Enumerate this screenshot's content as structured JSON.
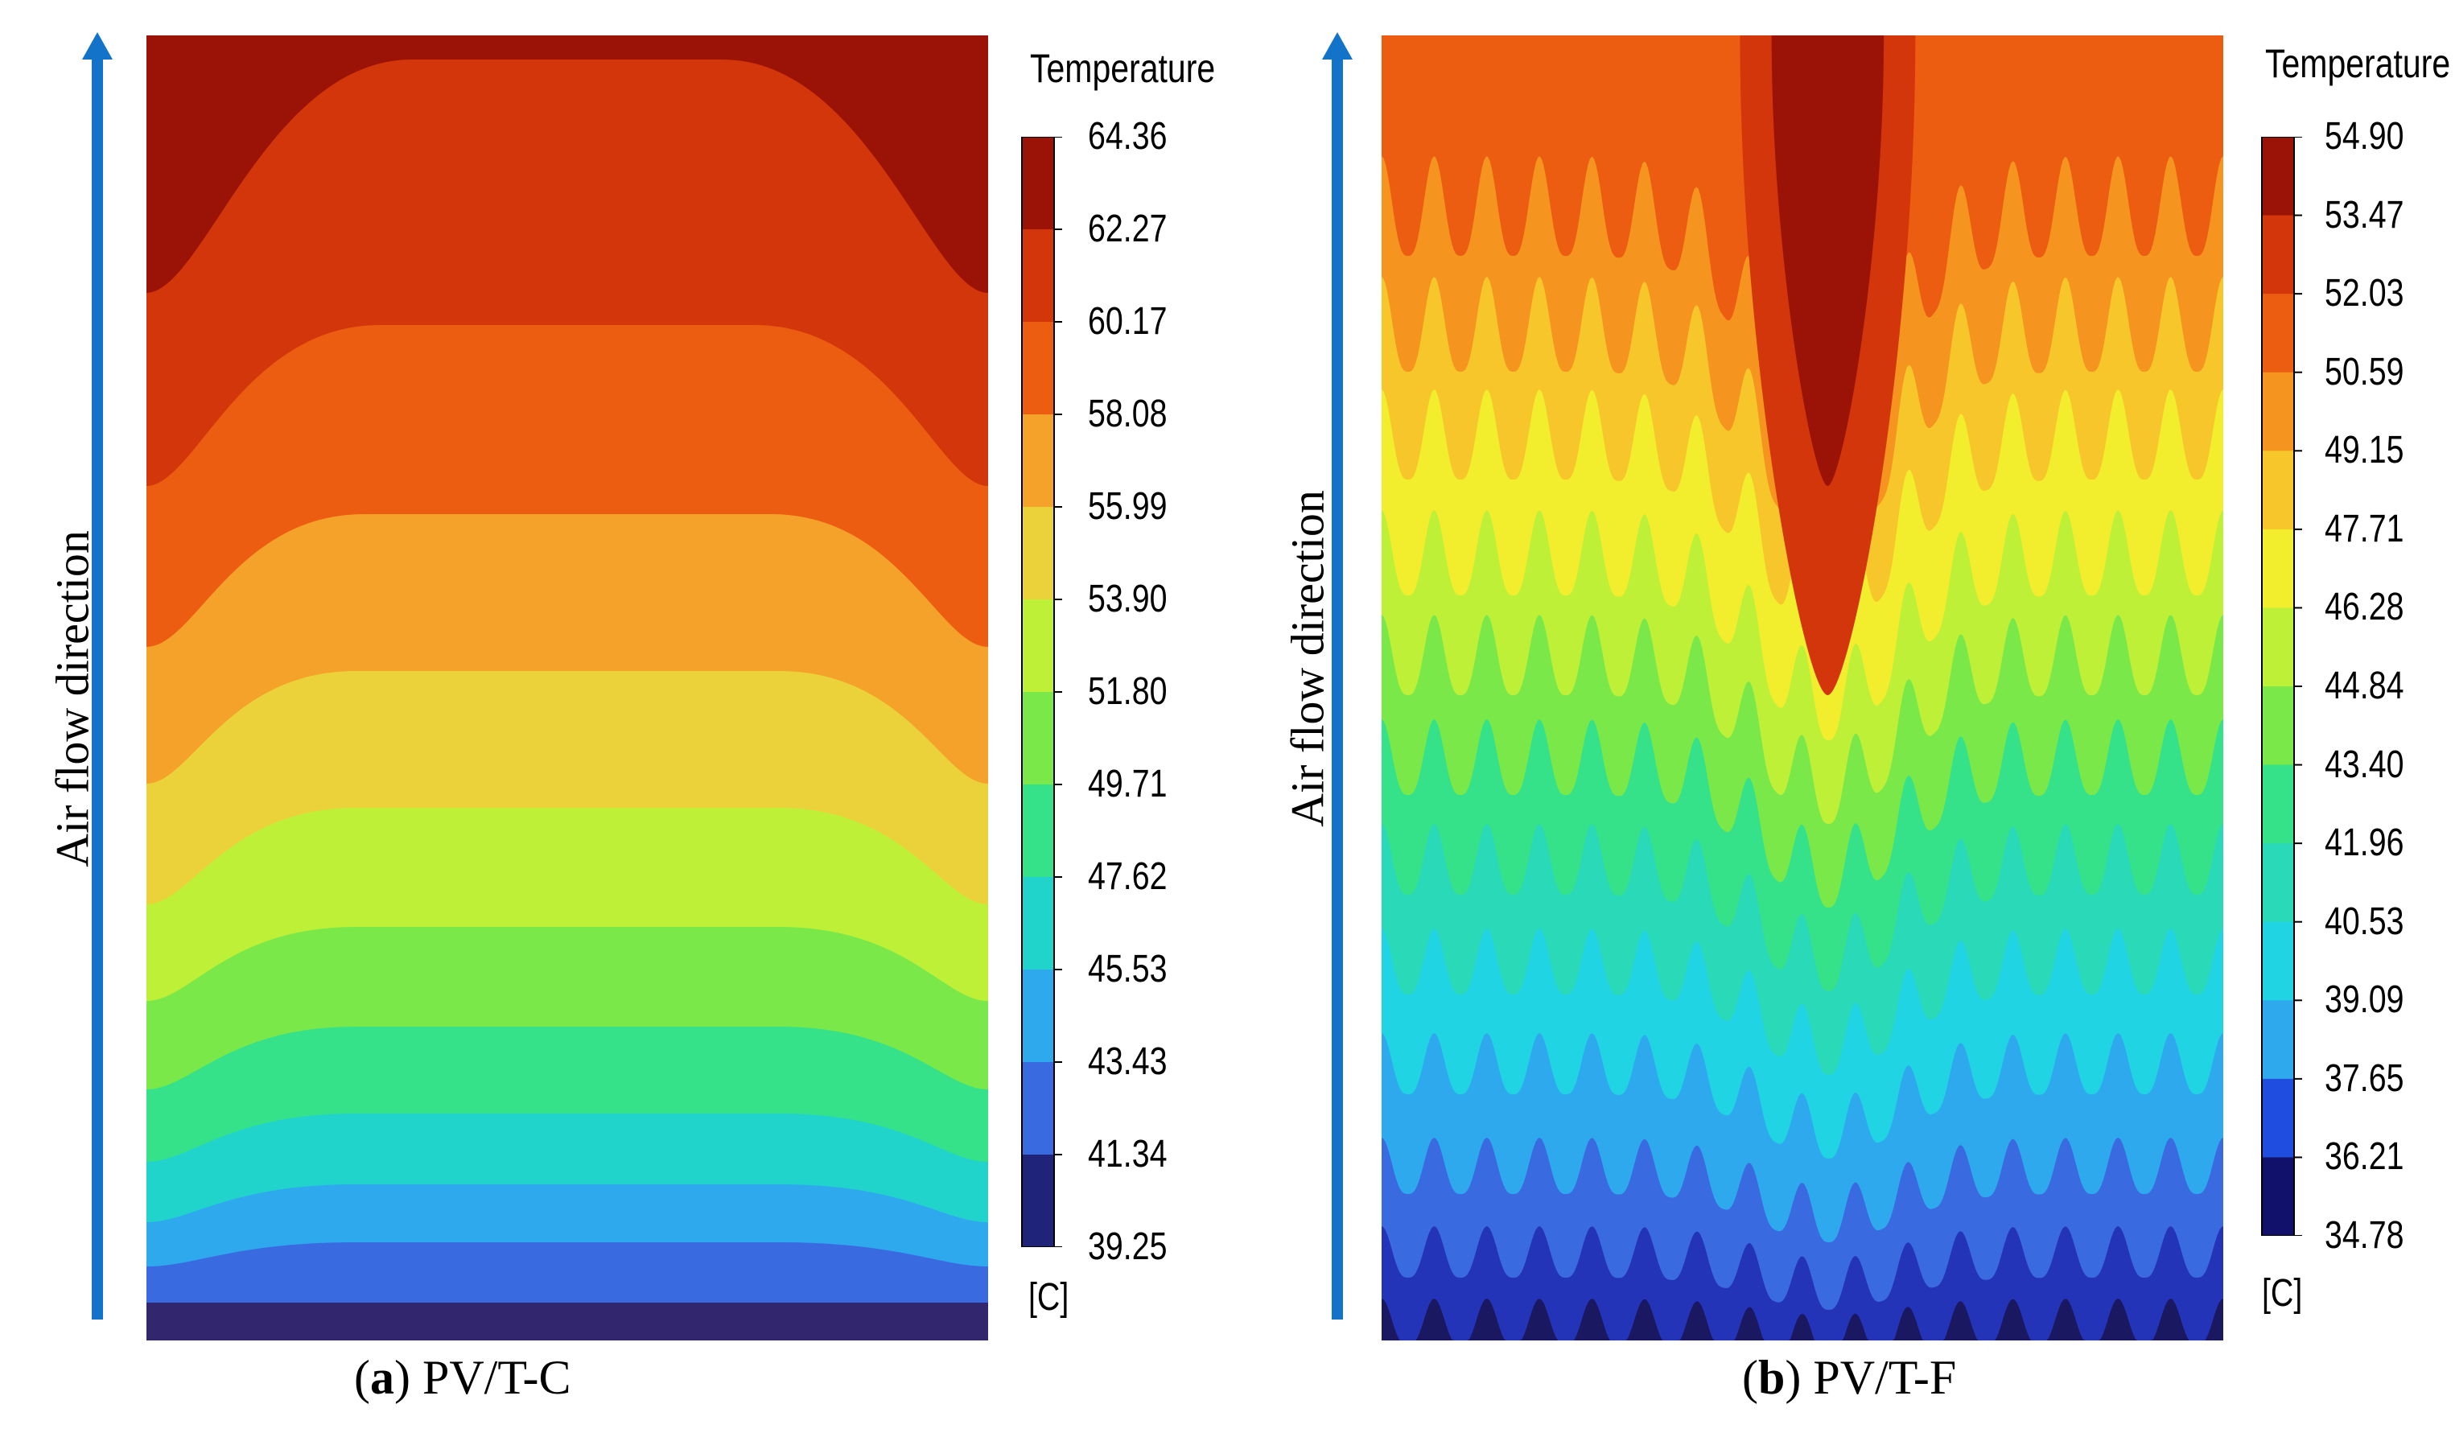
{
  "panels": [
    {
      "id": "a",
      "caption_letter": "a",
      "caption_text": "PV/T-C",
      "flow_label": "Air flow direction",
      "legend": {
        "title": "Temperature",
        "unit": "[C]",
        "ticks": [
          "64.36",
          "62.27",
          "60.17",
          "58.08",
          "55.99",
          "53.90",
          "51.80",
          "49.71",
          "47.62",
          "45.53",
          "43.43",
          "41.34",
          "39.25"
        ],
        "colors": [
          "#9b1306",
          "#d3360a",
          "#ec5d12",
          "#f4a22a",
          "#ecd23a",
          "#bff038",
          "#7be84a",
          "#35e189",
          "#20d4cc",
          "#2fa9ed",
          "#3a6ae0",
          "#1f237a"
        ]
      }
    },
    {
      "id": "b",
      "caption_letter": "b",
      "caption_text": "PV/T-F",
      "flow_label": "Air flow direction",
      "legend": {
        "title": "Temperature",
        "unit": "[C]",
        "ticks": [
          "54.90",
          "53.47",
          "52.03",
          "50.59",
          "49.15",
          "47.71",
          "46.28",
          "44.84",
          "43.40",
          "41.96",
          "40.53",
          "39.09",
          "37.65",
          "36.21",
          "34.78"
        ],
        "colors": [
          "#9b1306",
          "#d3360a",
          "#ec5d12",
          "#f5951f",
          "#f6c62b",
          "#f2ee2e",
          "#bff038",
          "#7be84a",
          "#35e189",
          "#2ad9b8",
          "#20d4e4",
          "#2fa9ed",
          "#1f4de0",
          "#11106a"
        ]
      }
    }
  ],
  "colors": {
    "arrow": "#1273c8"
  }
}
